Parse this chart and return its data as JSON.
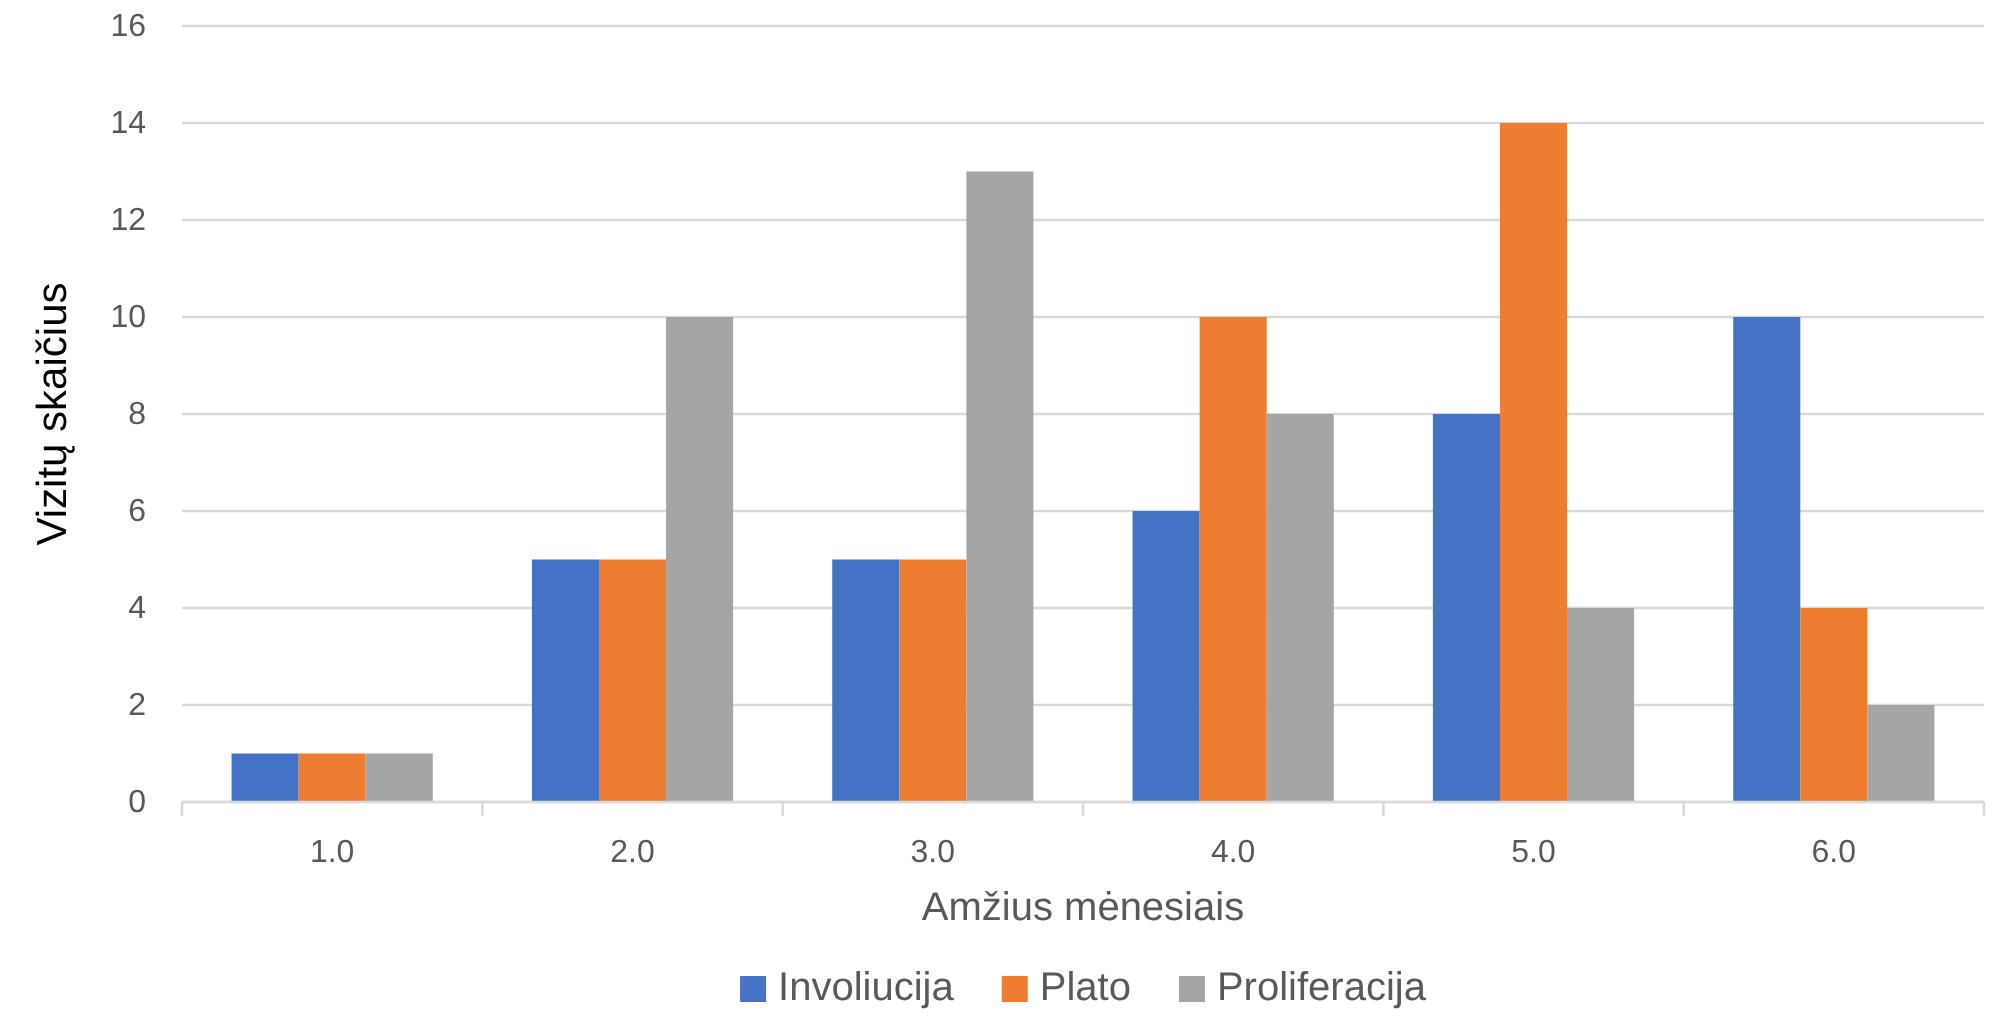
{
  "chart_data": {
    "type": "bar",
    "xlabel": "Amžius mėnesiais",
    "ylabel": "Vizitų skaičius",
    "categories": [
      "1.0",
      "2.0",
      "3.0",
      "4.0",
      "5.0",
      "6.0"
    ],
    "series": [
      {
        "name": "Involiucija",
        "color": "#4472c4",
        "values": [
          1,
          5,
          5,
          6,
          8,
          10
        ]
      },
      {
        "name": "Plato",
        "color": "#ed7d31",
        "values": [
          1,
          5,
          5,
          10,
          14,
          4
        ]
      },
      {
        "name": "Proliferacija",
        "color": "#a5a5a5",
        "values": [
          1,
          10,
          13,
          8,
          4,
          2
        ]
      }
    ],
    "ylim": [
      0,
      16
    ],
    "yticks": [
      0,
      2,
      4,
      6,
      8,
      10,
      12,
      14,
      16
    ],
    "grid": "y",
    "legend": "bottom"
  }
}
